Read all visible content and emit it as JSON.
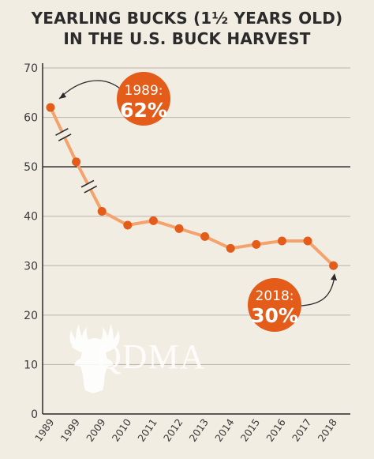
{
  "title": {
    "line1": "YEARLING BUCKS (1½ YEARS OLD)",
    "line2": "IN THE U.S. BUCK HARVEST"
  },
  "colors": {
    "background": "#f2ede3",
    "line": "#f5a36c",
    "point": "#e35c1a",
    "callout": "#e35c1a",
    "grid": "#b9b5ad",
    "axis": "#2b2b2b"
  },
  "callouts": {
    "first": {
      "line1": "1989:",
      "line2": "62%"
    },
    "last": {
      "line1": "2018:",
      "line2": "30%"
    }
  },
  "watermark": {
    "text": "QDMA"
  },
  "chart_data": {
    "type": "line",
    "title": "YEARLING BUCKS (1½ YEARS OLD) IN THE U.S. BUCK HARVEST",
    "xlabel": "",
    "ylabel": "",
    "categories": [
      "1989",
      "1999",
      "2009",
      "2010",
      "2011",
      "2012",
      "2013",
      "2014",
      "2015",
      "2016",
      "2017",
      "2018"
    ],
    "series": [
      {
        "values": [
          62,
          51,
          41,
          38.2,
          39.1,
          37.5,
          35.9,
          33.5,
          34.3,
          35,
          35,
          30
        ]
      }
    ],
    "yticks": [
      0,
      10,
      20,
      30,
      40,
      50,
      60,
      70
    ],
    "ylim": [
      0,
      70
    ],
    "axis_breaks": [
      "between 1989 and 1999",
      "between 1999 and 2009"
    ],
    "grid": true,
    "highlight_gridline": 50
  }
}
